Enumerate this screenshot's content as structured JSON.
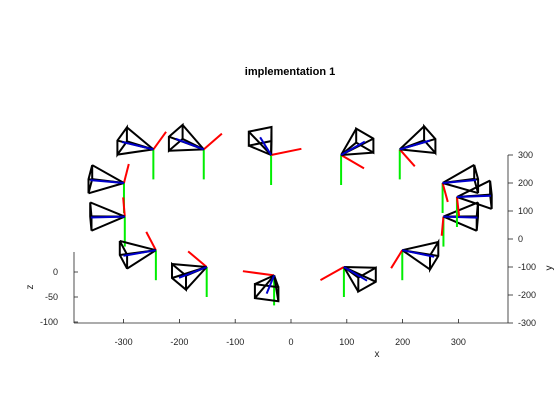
{
  "chart_data": {
    "type": "3d-camera-poses",
    "title": "implementation 1",
    "xlabel": "x",
    "ylabel": "y",
    "zlabel": "z",
    "x_ticks": [
      "-300",
      "-200",
      "-100",
      "0",
      "100",
      "200",
      "300"
    ],
    "y_ticks": [
      "-300",
      "-200",
      "-100",
      "0",
      "100",
      "200",
      "300"
    ],
    "z_ticks": [
      "0",
      "-50",
      "-100"
    ],
    "colors": {
      "x_axis_marker": "#ff0000",
      "z_axis_marker": "#00ee00",
      "optical_axis": "#0000cc",
      "frustum": "#000000"
    },
    "cameras": [
      {
        "x": -294,
        "y": 200,
        "z": 0
      },
      {
        "x": -294,
        "y": 80,
        "z": 0
      },
      {
        "x": -240,
        "y": 320,
        "z": 0
      },
      {
        "x": -240,
        "y": -40,
        "z": 0
      },
      {
        "x": -150,
        "y": 320,
        "z": 0
      },
      {
        "x": -150,
        "y": -100,
        "z": 0
      },
      {
        "x": -30,
        "y": 300,
        "z": 0
      },
      {
        "x": -30,
        "y": -130,
        "z": 0
      },
      {
        "x": 95,
        "y": 300,
        "z": 0
      },
      {
        "x": 95,
        "y": -100,
        "z": 0
      },
      {
        "x": 200,
        "y": 320,
        "z": 0
      },
      {
        "x": 200,
        "y": -40,
        "z": 0
      },
      {
        "x": 275,
        "y": 200,
        "z": 0
      },
      {
        "x": 275,
        "y": 80,
        "z": 0
      },
      {
        "x": 300,
        "y": 150,
        "z": 0
      }
    ]
  }
}
